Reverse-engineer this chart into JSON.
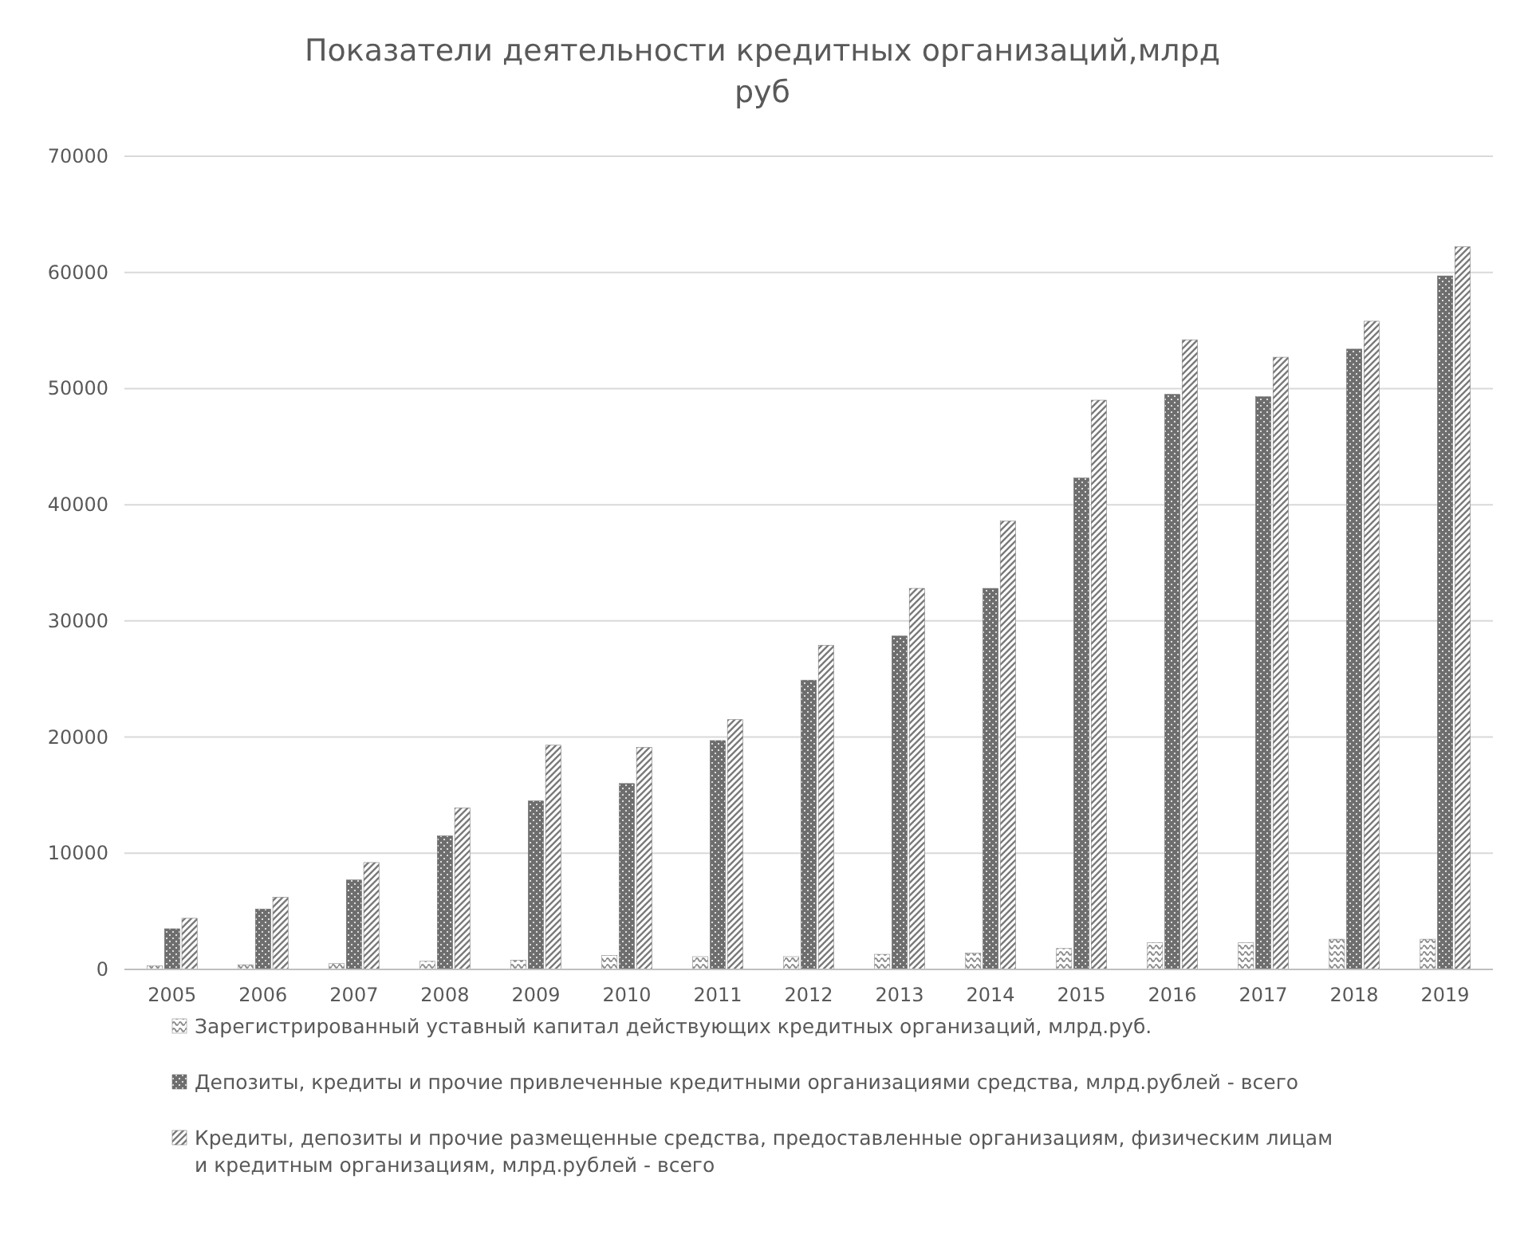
{
  "chart_data": {
    "type": "bar",
    "title": "Показатели деятельности кредитных организаций,млрд руб",
    "categories": [
      "2005",
      "2006",
      "2007",
      "2008",
      "2009",
      "2010",
      "2011",
      "2012",
      "2013",
      "2014",
      "2015",
      "2016",
      "2017",
      "2018",
      "2019"
    ],
    "series": [
      {
        "name": "Зарегистрированный уставный капитал действующих кредитных организаций, млрд.руб.",
        "color": "#8c8c8c",
        "values": [
          300,
          400,
          500,
          700,
          800,
          1200,
          1100,
          1100,
          1300,
          1400,
          1800,
          2300,
          2300,
          2600,
          2600
        ]
      },
      {
        "name": "Депозиты, кредиты и прочие привлеченные кредитными организациями средства, млрд.рублей - всего",
        "color": "#6e6e6e",
        "values": [
          3500,
          5200,
          7700,
          11500,
          14500,
          16000,
          19700,
          24900,
          28700,
          32800,
          42300,
          49500,
          49300,
          53400,
          59700
        ]
      },
      {
        "name": "Кредиты, депозиты и прочие размещенные средства, предоставленные организациям, физическим лицам и кредитным организациям, млрд.рублей - всего",
        "color": "#7a7a7a",
        "values": [
          4400,
          6200,
          9200,
          13900,
          19300,
          19100,
          21500,
          27900,
          32800,
          38600,
          49000,
          54200,
          52700,
          55800,
          62200
        ]
      }
    ],
    "ylim": [
      0,
      70000
    ],
    "yticks": [
      0,
      10000,
      20000,
      30000,
      40000,
      50000,
      60000,
      70000
    ],
    "grid": "y",
    "legend": "bottom"
  }
}
